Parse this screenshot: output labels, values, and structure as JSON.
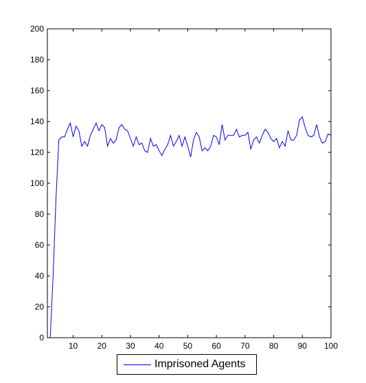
{
  "chart_data": {
    "type": "line",
    "title": "",
    "xlabel": "",
    "ylabel": "",
    "xlim": [
      1,
      100
    ],
    "ylim": [
      0,
      200
    ],
    "xticks": [
      "10",
      "20",
      "30",
      "40",
      "50",
      "60",
      "70",
      "80",
      "90",
      "100"
    ],
    "yticks": [
      "0",
      "20",
      "40",
      "60",
      "80",
      "100",
      "120",
      "140",
      "160",
      "180",
      "200"
    ],
    "grid": false,
    "legend_position": "bottom-outside",
    "series": [
      {
        "name": "Imprisoned Agents",
        "color": "#0000ff",
        "x": [
          2,
          3,
          4,
          5,
          6,
          7,
          8,
          9,
          10,
          11,
          12,
          13,
          14,
          15,
          16,
          17,
          18,
          19,
          20,
          21,
          22,
          23,
          24,
          25,
          26,
          27,
          28,
          29,
          30,
          31,
          32,
          33,
          34,
          35,
          36,
          37,
          38,
          39,
          40,
          41,
          42,
          43,
          44,
          45,
          46,
          47,
          48,
          49,
          50,
          51,
          52,
          53,
          54,
          55,
          56,
          57,
          58,
          59,
          60,
          61,
          62,
          63,
          64,
          65,
          66,
          67,
          68,
          69,
          70,
          71,
          72,
          73,
          74,
          75,
          76,
          77,
          78,
          79,
          80,
          81,
          82,
          83,
          84,
          85,
          86,
          87,
          88,
          89,
          90,
          91,
          92,
          93,
          94,
          95,
          96,
          97,
          98,
          99,
          100
        ],
        "values": [
          0,
          40,
          90,
          128,
          130,
          130,
          135,
          139,
          130,
          137,
          134,
          124,
          127,
          124,
          131,
          135,
          139,
          134,
          138,
          136,
          124,
          129,
          126,
          128,
          136,
          138,
          135,
          134,
          129,
          124,
          130,
          125,
          126,
          121,
          120,
          129,
          124,
          125,
          121,
          118,
          122,
          125,
          131,
          124,
          127,
          131,
          124,
          130,
          124,
          117,
          128,
          133,
          130,
          121,
          123,
          121,
          124,
          131,
          130,
          125,
          138,
          128,
          131,
          131,
          131,
          135,
          130,
          131,
          131,
          133,
          122,
          128,
          130,
          126,
          131,
          135,
          133,
          129,
          127,
          129,
          123,
          127,
          124,
          134,
          128,
          128,
          131,
          141,
          143,
          136,
          131,
          130,
          131,
          138,
          130,
          126,
          127,
          132,
          131
        ]
      }
    ]
  }
}
